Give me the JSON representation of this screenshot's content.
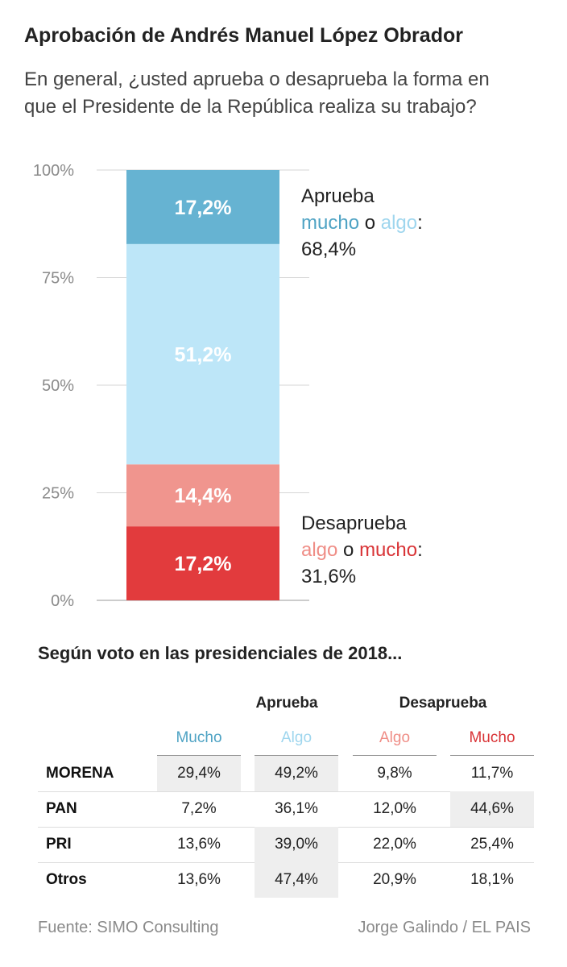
{
  "chart_data": {
    "type": "bar",
    "title": "Aprobación de Andrés Manuel López Obrador",
    "subtitle": "En general, ¿usted aprueba o desaprueba la forma en que el Presidente de la República realiza su trabajo?",
    "ylim": [
      0,
      100
    ],
    "yticks": [
      "100%",
      "75%",
      "50%",
      "25%",
      "0%"
    ],
    "ytick_values": [
      100,
      75,
      50,
      25,
      0
    ],
    "stacked": true,
    "segments": [
      {
        "label": "17,2%",
        "value": 17.2,
        "color": "#e23b3d"
      },
      {
        "label": "14,4%",
        "value": 14.4,
        "color": "#f0958e"
      },
      {
        "label": "51,2%",
        "value": 51.2,
        "color": "#bde6f8"
      },
      {
        "label": "17,2%",
        "value": 17.2,
        "color": "#66b3d2"
      }
    ],
    "grid": true
  },
  "legend": {
    "approve": {
      "line1": "Aprueba",
      "mucho": "mucho",
      "o": " o ",
      "algo": "algo",
      "colon": ":",
      "total": "68,4%"
    },
    "disapprove": {
      "line1": "Desaprueba",
      "algo": "algo",
      "o": " o ",
      "mucho": "mucho",
      "colon": ":",
      "total": "31,6%"
    }
  },
  "table": {
    "title": "Según voto en las presidenciales de 2018...",
    "group_approve": "Aprueba",
    "group_disapprove": "Desaprueba",
    "subheaders": [
      "Mucho",
      "Algo",
      "Algo",
      "Mucho"
    ],
    "rows": [
      {
        "label": "MORENA",
        "values": [
          "29,4%",
          "49,2%",
          "9,8%",
          "11,7%"
        ],
        "highlight": [
          true,
          true,
          false,
          false
        ]
      },
      {
        "label": "PAN",
        "values": [
          "7,2%",
          "36,1%",
          "12,0%",
          "44,6%"
        ],
        "highlight": [
          false,
          false,
          false,
          true
        ]
      },
      {
        "label": "PRI",
        "values": [
          "13,6%",
          "39,0%",
          "22,0%",
          "25,4%"
        ],
        "highlight": [
          false,
          true,
          false,
          false
        ]
      },
      {
        "label": "Otros",
        "values": [
          "13,6%",
          "47,4%",
          "20,9%",
          "18,1%"
        ],
        "highlight": [
          false,
          true,
          false,
          false
        ]
      }
    ]
  },
  "footer": {
    "source": "Fuente: SIMO Consulting",
    "credit": "Jorge Galindo / EL PAIS"
  }
}
